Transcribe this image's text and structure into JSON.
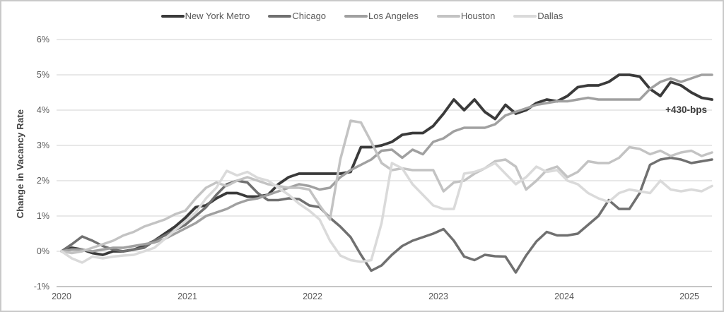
{
  "legend": {
    "items": [
      {
        "label": "New York Metro",
        "color": "#3a3a3a"
      },
      {
        "label": "Chicago",
        "color": "#707070"
      },
      {
        "label": "Los Angeles",
        "color": "#a0a0a0"
      },
      {
        "label": "Houston",
        "color": "#c3c3c3"
      },
      {
        "label": "Dallas",
        "color": "#dadada"
      }
    ]
  },
  "y_axis": {
    "title": "Change in Vacancy Rate",
    "ticks": [
      "6%",
      "5%",
      "4%",
      "3%",
      "2%",
      "1%",
      "0%",
      "-1%"
    ]
  },
  "x_axis": {
    "ticks": [
      "2020",
      "2021",
      "2022",
      "2023",
      "2024",
      "2025"
    ]
  },
  "annotation": {
    "label": "+430-bps"
  },
  "colors": {
    "gridline": "#d9d9d9",
    "baseline": "#b3b3b3",
    "tick_text": "#595959"
  },
  "chart_data": {
    "type": "line",
    "title": "",
    "xlabel": "",
    "ylabel": "Change in Vacancy Rate",
    "ylim": [
      -1,
      6
    ],
    "grid": "horizontal",
    "legend_position": "top-center",
    "x_unit": "monthly, Jan 2020 - Apr 2025",
    "x_year_tick_month_indexes": [
      0,
      12,
      24,
      36,
      48,
      60
    ],
    "x_tick_labels": [
      "2020",
      "2021",
      "2022",
      "2023",
      "2024",
      "2025"
    ],
    "annotation": {
      "text": "+430-bps",
      "series": "New York Metro",
      "value_bps": 430
    },
    "series": [
      {
        "name": "New York Metro",
        "color": "#3a3a3a",
        "end_value": 4.3,
        "values": [
          0,
          0.1,
          0.05,
          -0.05,
          -0.1,
          0,
          0,
          0.05,
          0.15,
          0.3,
          0.5,
          0.7,
          0.95,
          1.25,
          1.3,
          1.5,
          1.65,
          1.65,
          1.55,
          1.55,
          1.6,
          1.9,
          2.1,
          2.2,
          2.2,
          2.2,
          2.2,
          2.2,
          2.25,
          2.95,
          2.95,
          3.0,
          3.1,
          3.3,
          3.35,
          3.35,
          3.55,
          3.9,
          4.3,
          4.0,
          4.3,
          3.95,
          3.75,
          4.15,
          3.9,
          4.0,
          4.2,
          4.3,
          4.25,
          4.4,
          4.65,
          4.7,
          4.7,
          4.8,
          5.0,
          5.0,
          4.95,
          4.6,
          4.4,
          4.8,
          4.7,
          4.5,
          4.35,
          4.3
        ]
      },
      {
        "name": "Chicago",
        "color": "#707070",
        "end_value": 2.6,
        "values": [
          0,
          0.2,
          0.42,
          0.3,
          0.15,
          0.05,
          0,
          0.05,
          0.1,
          0.3,
          0.45,
          0.6,
          0.75,
          1.0,
          1.25,
          1.6,
          1.9,
          2.0,
          1.95,
          1.65,
          1.45,
          1.45,
          1.5,
          1.48,
          1.3,
          1.25,
          0.95,
          0.7,
          0.4,
          -0.1,
          -0.55,
          -0.4,
          -0.1,
          0.15,
          0.3,
          0.4,
          0.5,
          0.63,
          0.3,
          -0.15,
          -0.25,
          -0.1,
          -0.14,
          -0.15,
          -0.6,
          -0.12,
          0.28,
          0.55,
          0.45,
          0.45,
          0.5,
          0.75,
          1.0,
          1.45,
          1.2,
          1.2,
          1.65,
          2.45,
          2.6,
          2.65,
          2.6,
          2.5,
          2.55,
          2.6
        ]
      },
      {
        "name": "Los Angeles",
        "color": "#a0a0a0",
        "end_value": 5.0,
        "values": [
          0,
          0.05,
          0.05,
          0,
          0.05,
          0.1,
          0.1,
          0.15,
          0.2,
          0.25,
          0.35,
          0.5,
          0.65,
          0.8,
          1.0,
          1.1,
          1.2,
          1.35,
          1.45,
          1.5,
          1.6,
          1.7,
          1.8,
          1.9,
          1.85,
          1.75,
          1.8,
          2.1,
          2.3,
          2.45,
          2.6,
          2.85,
          2.88,
          2.65,
          2.88,
          2.75,
          3.1,
          3.2,
          3.4,
          3.5,
          3.5,
          3.5,
          3.6,
          3.85,
          3.95,
          4.05,
          4.15,
          4.2,
          4.25,
          4.25,
          4.3,
          4.35,
          4.3,
          4.3,
          4.3,
          4.3,
          4.3,
          4.6,
          4.8,
          4.9,
          4.8,
          4.9,
          5.0,
          5.0
        ]
      },
      {
        "name": "Houston",
        "color": "#c3c3c3",
        "end_value": 2.8,
        "values": [
          0,
          -0.05,
          0,
          0.1,
          0.2,
          0.3,
          0.45,
          0.55,
          0.7,
          0.8,
          0.9,
          1.05,
          1.15,
          1.5,
          1.8,
          1.95,
          1.85,
          2.0,
          2.1,
          2.0,
          1.9,
          1.85,
          1.8,
          1.8,
          1.75,
          1.3,
          0.9,
          2.6,
          3.7,
          3.65,
          3.1,
          2.5,
          2.3,
          2.35,
          2.3,
          2.3,
          2.3,
          1.7,
          1.95,
          2.0,
          2.2,
          2.35,
          2.55,
          2.6,
          2.4,
          1.75,
          2.0,
          2.3,
          2.4,
          2.1,
          2.25,
          2.55,
          2.5,
          2.5,
          2.65,
          2.95,
          2.9,
          2.75,
          2.85,
          2.7,
          2.8,
          2.85,
          2.7,
          2.8
        ]
      },
      {
        "name": "Dallas",
        "color": "#dadada",
        "end_value": 1.85,
        "values": [
          0,
          -0.2,
          -0.32,
          -0.15,
          -0.2,
          -0.15,
          -0.12,
          -0.1,
          0,
          0.1,
          0.35,
          0.6,
          0.85,
          1.1,
          1.5,
          1.8,
          2.28,
          2.15,
          2.25,
          2.08,
          2.0,
          1.8,
          1.6,
          1.35,
          1.15,
          0.9,
          0.3,
          -0.12,
          -0.25,
          -0.3,
          -0.25,
          0.8,
          2.5,
          2.35,
          1.9,
          1.6,
          1.3,
          1.2,
          1.2,
          2.2,
          2.25,
          2.35,
          2.5,
          2.2,
          1.9,
          2.1,
          2.4,
          2.25,
          2.3,
          2.0,
          1.9,
          1.65,
          1.5,
          1.4,
          1.65,
          1.75,
          1.7,
          1.65,
          2.0,
          1.75,
          1.7,
          1.75,
          1.7,
          1.85
        ]
      }
    ]
  }
}
